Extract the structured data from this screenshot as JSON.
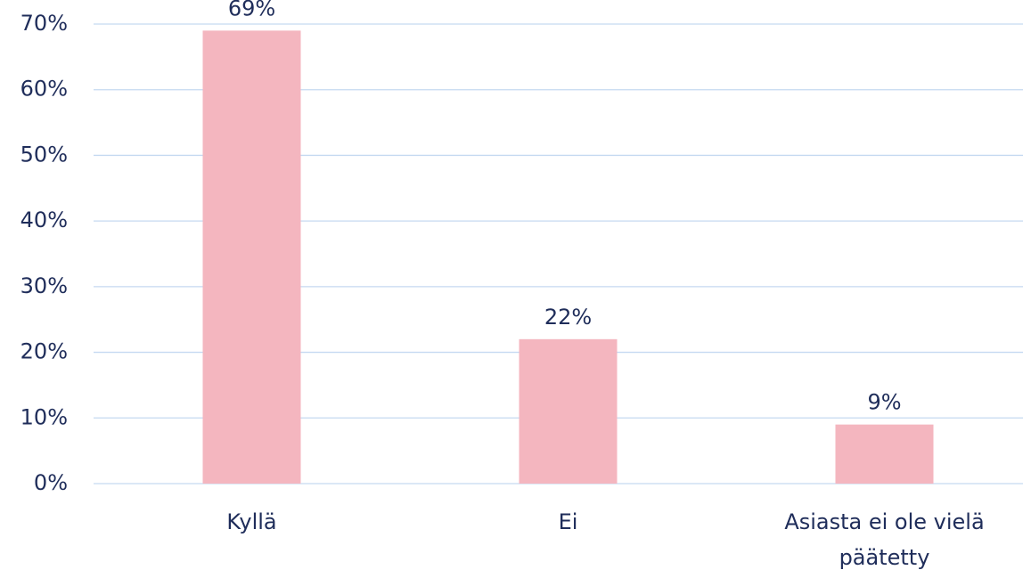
{
  "chart_data": {
    "type": "bar",
    "categories": [
      "Kyllä",
      "Ei",
      "Asiasta ei ole vielä päätetty"
    ],
    "values": [
      69,
      22,
      9
    ],
    "value_labels": [
      "69%",
      "22%",
      "9%"
    ],
    "color": "#f4b6bf",
    "ylim": [
      0,
      70
    ],
    "yticks": [
      {
        "value": 0,
        "label": "0%"
      },
      {
        "value": 10,
        "label": "10%"
      },
      {
        "value": 20,
        "label": "20%"
      },
      {
        "value": 30,
        "label": "30%"
      },
      {
        "value": 40,
        "label": "40%"
      },
      {
        "value": 50,
        "label": "50%"
      },
      {
        "value": 60,
        "label": "60%"
      },
      {
        "value": 70,
        "label": "70%"
      }
    ],
    "grid": true
  }
}
